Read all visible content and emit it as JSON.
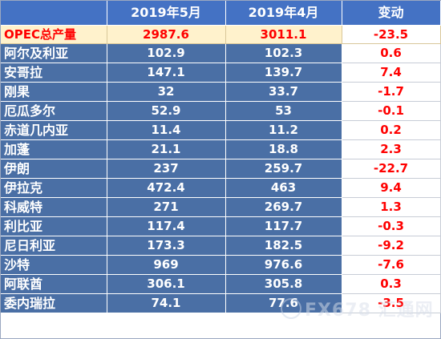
{
  "header": {
    "col0": "",
    "col1": "2019年5月",
    "col2": "2019年4月",
    "col3": "变动"
  },
  "opec_row": {
    "name": "OPEC总产量",
    "may": "2987.6",
    "apr": "3011.1",
    "change": "-23.5"
  },
  "rows": [
    {
      "name": "阿尔及利亚",
      "may": "102.9",
      "apr": "102.3",
      "change": "0.6"
    },
    {
      "name": "安哥拉",
      "may": "147.1",
      "apr": "139.7",
      "change": "7.4"
    },
    {
      "name": "刚果",
      "may": "32",
      "apr": "33.7",
      "change": "-1.7"
    },
    {
      "name": "厄瓜多尔",
      "may": "52.9",
      "apr": "53",
      "change": "-0.1"
    },
    {
      "name": "赤道几内亚",
      "may": "11.4",
      "apr": "11.2",
      "change": "0.2"
    },
    {
      "name": "加蓬",
      "may": "21.1",
      "apr": "18.8",
      "change": "2.3"
    },
    {
      "name": "伊朗",
      "may": "237",
      "apr": "259.7",
      "change": "-22.7"
    },
    {
      "name": "伊拉克",
      "may": "472.4",
      "apr": "463",
      "change": "9.4"
    },
    {
      "name": "科威特",
      "may": "271",
      "apr": "269.7",
      "change": "1.3"
    },
    {
      "name": "利比亚",
      "may": "117.4",
      "apr": "117.7",
      "change": "-0.3"
    },
    {
      "name": "尼日利亚",
      "may": "173.3",
      "apr": "182.5",
      "change": "-9.2"
    },
    {
      "name": "沙特",
      "may": "969",
      "apr": "976.6",
      "change": "-7.6"
    },
    {
      "name": "阿联酋",
      "may": "306.1",
      "apr": "305.8",
      "change": "0.3"
    },
    {
      "name": "委内瑞拉",
      "may": "74.1",
      "apr": "77.6",
      "change": "-3.5"
    }
  ],
  "watermark": {
    "text": "FX678 汇通网"
  },
  "colors": {
    "header_bg": "#4472c4",
    "row_bg": "#4a6fa5",
    "opec_bg": "#fff2cc",
    "change_text": "#ff0000"
  }
}
